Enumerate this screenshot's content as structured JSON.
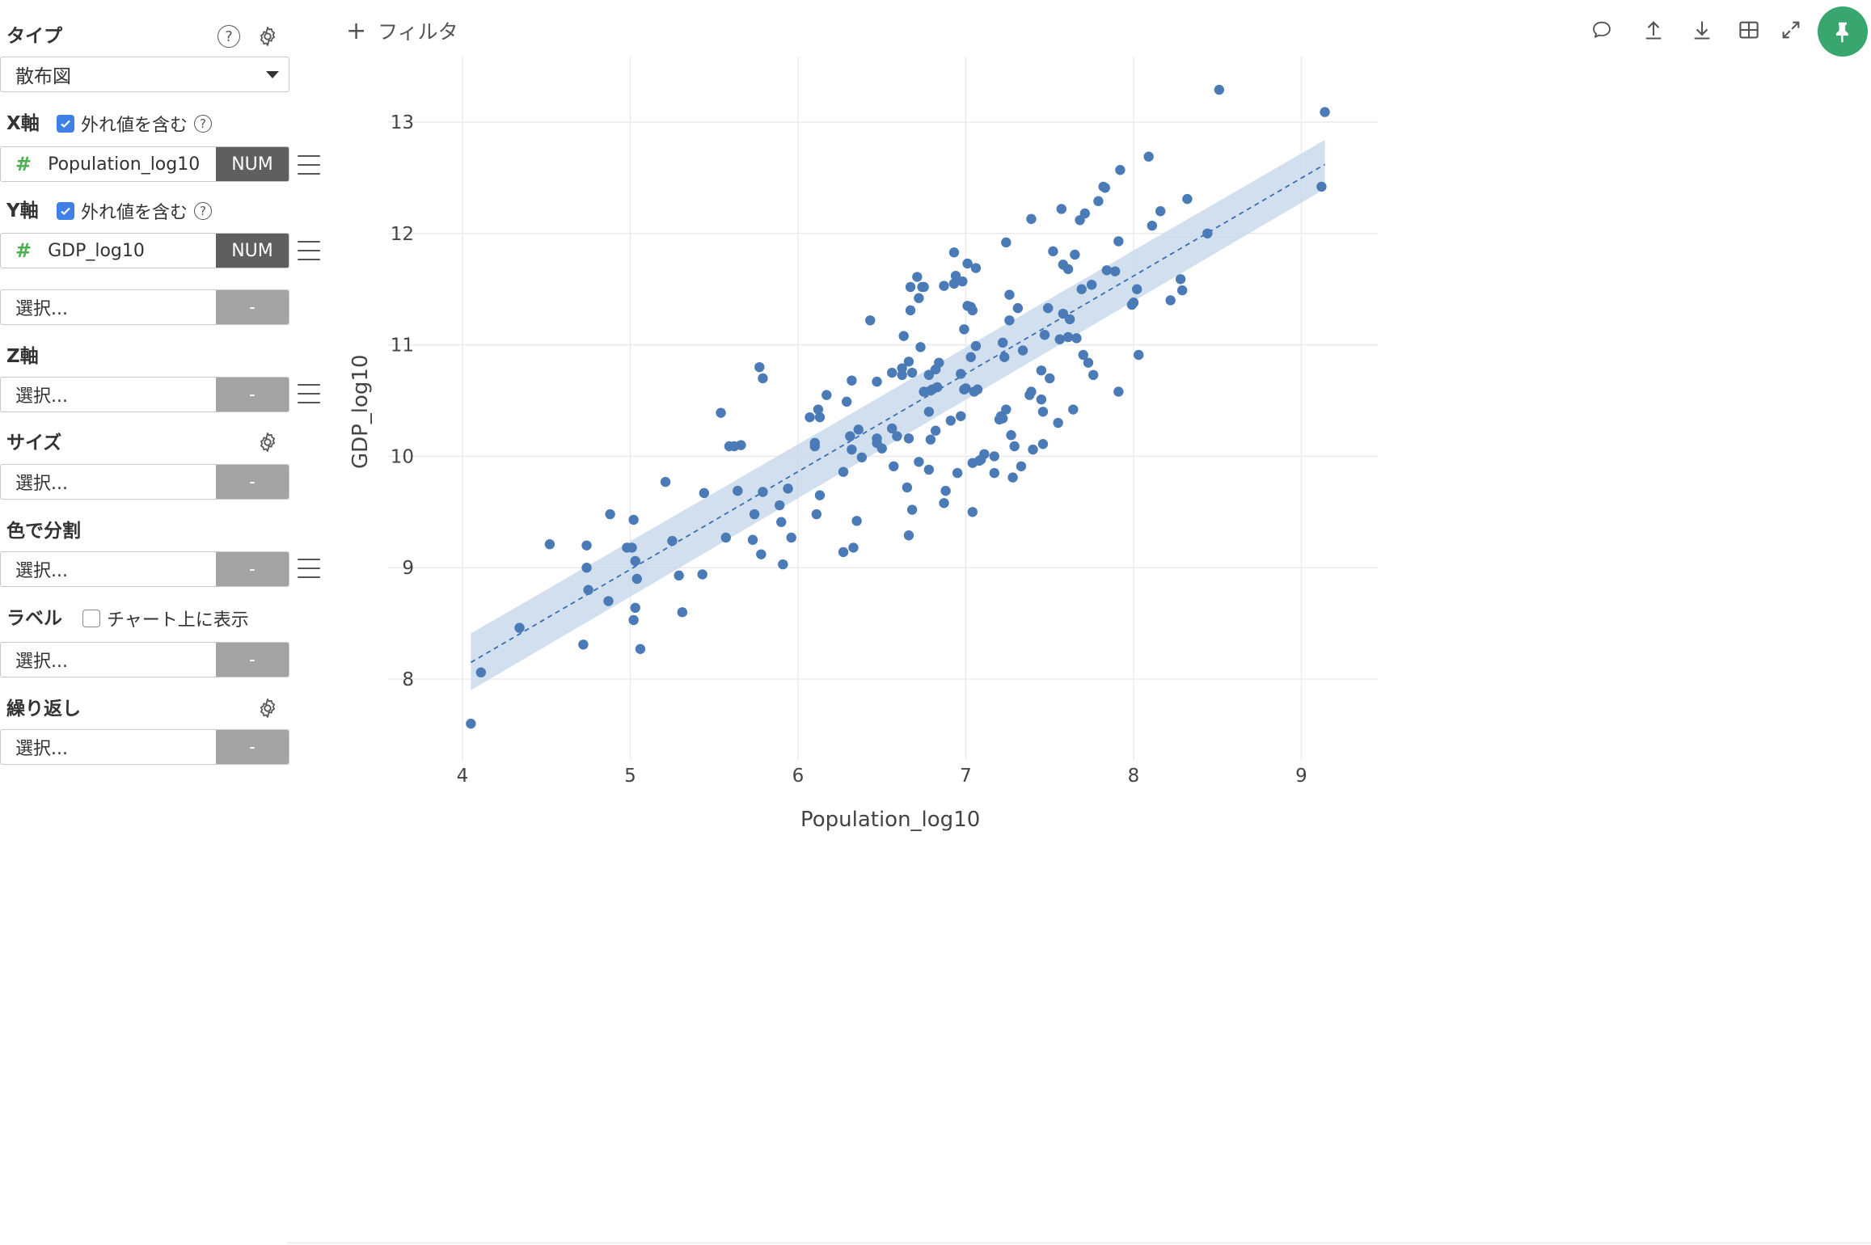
{
  "panel": {
    "type_label": "タイプ",
    "type_value": "散布図",
    "x_axis": {
      "label": "X軸",
      "include_outliers": "外れ値を含む",
      "column": "Population_log10",
      "tag": "NUM"
    },
    "y_axis": {
      "label": "Y軸",
      "include_outliers": "外れ値を含む",
      "column": "GDP_log10",
      "tag": "NUM",
      "extra_placeholder": "選択...",
      "extra_tag": "-"
    },
    "z_axis": {
      "label": "Z軸",
      "placeholder": "選択...",
      "tag": "-"
    },
    "size": {
      "label": "サイズ",
      "placeholder": "選択...",
      "tag": "-"
    },
    "color_split": {
      "label": "色で分割",
      "placeholder": "選択...",
      "tag": "-"
    },
    "label": {
      "label": "ラベル",
      "show_on_chart": "チャート上に表示",
      "placeholder": "選択...",
      "tag": "-"
    },
    "repeat": {
      "label": "繰り返し",
      "placeholder": "選択...",
      "tag": "-"
    }
  },
  "toolbar": {
    "filter_label": "フィルタ",
    "icons": [
      "comment-icon",
      "upload-icon",
      "download-icon",
      "table-icon",
      "expand-icon",
      "pin-icon"
    ]
  },
  "colors": {
    "point": "#4a7bb7",
    "band": "#c9d9ec",
    "trend": "#3a6fb0",
    "pin": "#3aa66f",
    "checkbox": "#3f80e6",
    "tag_dark": "#5f5f5f",
    "tag_light": "#a3a3a3"
  },
  "chart_data": {
    "type": "scatter",
    "xlabel": "Population_log10",
    "ylabel": "GDP_log10",
    "xlim": [
      3.96,
      9.45
    ],
    "ylim": [
      7.22,
      13.62
    ],
    "xticks": [
      4,
      5,
      6,
      7,
      8,
      9
    ],
    "yticks": [
      8,
      9,
      10,
      11,
      12,
      13
    ],
    "grid": true,
    "trend_line": {
      "x": [
        4.05,
        9.14
      ],
      "y": [
        8.15,
        12.62
      ],
      "style": "dashed"
    },
    "confidence_band": {
      "x": [
        4.05,
        9.14
      ],
      "upper": [
        8.41,
        12.84
      ],
      "lower": [
        7.9,
        12.4
      ]
    },
    "points": [
      [
        4.05,
        7.6
      ],
      [
        4.11,
        8.06
      ],
      [
        4.34,
        8.46
      ],
      [
        4.52,
        9.21
      ],
      [
        4.72,
        8.31
      ],
      [
        4.74,
        9.2
      ],
      [
        4.74,
        9.0
      ],
      [
        4.75,
        8.8
      ],
      [
        4.87,
        8.7
      ],
      [
        4.88,
        9.48
      ],
      [
        4.98,
        9.18
      ],
      [
        5.01,
        9.18
      ],
      [
        5.02,
        8.53
      ],
      [
        5.02,
        9.43
      ],
      [
        5.03,
        9.06
      ],
      [
        5.03,
        8.64
      ],
      [
        5.04,
        8.9
      ],
      [
        5.06,
        8.27
      ],
      [
        5.21,
        9.77
      ],
      [
        5.25,
        9.24
      ],
      [
        5.29,
        8.93
      ],
      [
        5.31,
        8.6
      ],
      [
        5.43,
        8.94
      ],
      [
        5.44,
        9.67
      ],
      [
        5.54,
        10.39
      ],
      [
        5.57,
        9.27
      ],
      [
        5.59,
        10.09
      ],
      [
        5.62,
        10.09
      ],
      [
        5.64,
        9.69
      ],
      [
        5.66,
        10.1
      ],
      [
        5.73,
        9.25
      ],
      [
        5.74,
        9.48
      ],
      [
        5.77,
        10.8
      ],
      [
        5.78,
        9.12
      ],
      [
        5.79,
        10.7
      ],
      [
        5.79,
        9.68
      ],
      [
        5.89,
        9.56
      ],
      [
        5.9,
        9.41
      ],
      [
        5.91,
        9.03
      ],
      [
        5.94,
        9.71
      ],
      [
        5.96,
        9.27
      ],
      [
        6.07,
        10.35
      ],
      [
        6.1,
        10.12
      ],
      [
        6.1,
        10.09
      ],
      [
        6.12,
        10.42
      ],
      [
        6.13,
        10.35
      ],
      [
        6.11,
        9.48
      ],
      [
        6.13,
        9.65
      ],
      [
        6.17,
        10.55
      ],
      [
        6.27,
        9.14
      ],
      [
        6.27,
        9.86
      ],
      [
        6.29,
        10.49
      ],
      [
        6.31,
        10.18
      ],
      [
        6.32,
        10.68
      ],
      [
        6.33,
        9.18
      ],
      [
        6.32,
        10.06
      ],
      [
        6.35,
        9.42
      ],
      [
        6.36,
        10.24
      ],
      [
        6.38,
        9.99
      ],
      [
        6.43,
        11.22
      ],
      [
        6.47,
        10.67
      ],
      [
        6.47,
        10.16
      ],
      [
        6.47,
        10.12
      ],
      [
        6.5,
        10.07
      ],
      [
        6.56,
        10.75
      ],
      [
        6.56,
        10.25
      ],
      [
        6.57,
        9.91
      ],
      [
        6.59,
        10.18
      ],
      [
        6.62,
        10.79
      ],
      [
        6.63,
        11.08
      ],
      [
        6.62,
        10.73
      ],
      [
        6.65,
        9.72
      ],
      [
        6.66,
        9.29
      ],
      [
        6.66,
        10.85
      ],
      [
        6.66,
        10.16
      ],
      [
        6.67,
        11.52
      ],
      [
        6.67,
        11.31
      ],
      [
        6.68,
        10.75
      ],
      [
        6.68,
        9.52
      ],
      [
        6.71,
        11.61
      ],
      [
        6.72,
        11.42
      ],
      [
        6.72,
        9.95
      ],
      [
        6.73,
        10.98
      ],
      [
        6.74,
        11.52
      ],
      [
        6.75,
        11.52
      ],
      [
        6.75,
        10.58
      ],
      [
        6.78,
        10.73
      ],
      [
        6.79,
        10.59
      ],
      [
        6.79,
        10.15
      ],
      [
        6.8,
        10.6
      ],
      [
        6.82,
        10.23
      ],
      [
        6.82,
        10.78
      ],
      [
        6.83,
        10.62
      ],
      [
        6.84,
        10.84
      ],
      [
        6.78,
        9.88
      ],
      [
        6.78,
        10.4
      ],
      [
        6.87,
        11.53
      ],
      [
        6.87,
        9.58
      ],
      [
        6.88,
        9.69
      ],
      [
        6.91,
        10.32
      ],
      [
        6.93,
        11.83
      ],
      [
        6.93,
        11.55
      ],
      [
        6.94,
        11.62
      ],
      [
        6.95,
        9.85
      ],
      [
        6.97,
        10.36
      ],
      [
        6.97,
        10.74
      ],
      [
        6.98,
        11.57
      ],
      [
        6.99,
        10.6
      ],
      [
        6.99,
        11.14
      ],
      [
        7.0,
        10.61
      ],
      [
        7.01,
        11.73
      ],
      [
        7.01,
        11.35
      ],
      [
        7.03,
        11.34
      ],
      [
        7.03,
        10.89
      ],
      [
        7.04,
        11.31
      ],
      [
        7.04,
        9.5
      ],
      [
        7.04,
        9.94
      ],
      [
        7.05,
        10.58
      ],
      [
        7.06,
        11.69
      ],
      [
        7.06,
        10.99
      ],
      [
        7.07,
        10.6
      ],
      [
        7.08,
        9.96
      ],
      [
        7.09,
        9.97
      ],
      [
        7.11,
        10.02
      ],
      [
        7.17,
        10.0
      ],
      [
        7.17,
        9.85
      ],
      [
        7.2,
        10.33
      ],
      [
        7.21,
        10.36
      ],
      [
        7.22,
        10.34
      ],
      [
        7.22,
        11.02
      ],
      [
        7.23,
        10.89
      ],
      [
        7.24,
        10.42
      ],
      [
        7.24,
        11.92
      ],
      [
        7.26,
        11.45
      ],
      [
        7.26,
        11.22
      ],
      [
        7.27,
        10.19
      ],
      [
        7.28,
        9.81
      ],
      [
        7.29,
        10.09
      ],
      [
        7.31,
        11.33
      ],
      [
        7.33,
        9.91
      ],
      [
        7.34,
        10.95
      ],
      [
        7.38,
        10.55
      ],
      [
        7.39,
        10.58
      ],
      [
        7.39,
        12.13
      ],
      [
        7.4,
        10.06
      ],
      [
        7.45,
        10.51
      ],
      [
        7.45,
        10.77
      ],
      [
        7.46,
        10.4
      ],
      [
        7.46,
        10.11
      ],
      [
        7.47,
        11.09
      ],
      [
        7.49,
        11.33
      ],
      [
        7.5,
        10.7
      ],
      [
        7.52,
        11.84
      ],
      [
        7.55,
        10.3
      ],
      [
        7.56,
        11.05
      ],
      [
        7.57,
        12.22
      ],
      [
        7.58,
        11.72
      ],
      [
        7.58,
        11.28
      ],
      [
        7.61,
        11.07
      ],
      [
        7.61,
        11.68
      ],
      [
        7.62,
        11.23
      ],
      [
        7.64,
        10.42
      ],
      [
        7.65,
        11.81
      ],
      [
        7.66,
        11.06
      ],
      [
        7.68,
        12.12
      ],
      [
        7.69,
        11.5
      ],
      [
        7.7,
        10.91
      ],
      [
        7.71,
        12.18
      ],
      [
        7.73,
        10.84
      ],
      [
        7.75,
        11.54
      ],
      [
        7.76,
        10.73
      ],
      [
        7.79,
        12.29
      ],
      [
        7.82,
        12.42
      ],
      [
        7.83,
        12.41
      ],
      [
        7.84,
        11.67
      ],
      [
        7.89,
        11.66
      ],
      [
        7.91,
        10.58
      ],
      [
        7.91,
        11.93
      ],
      [
        7.92,
        12.57
      ],
      [
        7.99,
        11.36
      ],
      [
        8.0,
        11.38
      ],
      [
        8.02,
        11.5
      ],
      [
        8.03,
        10.91
      ],
      [
        8.09,
        12.69
      ],
      [
        8.11,
        12.07
      ],
      [
        8.16,
        12.2
      ],
      [
        8.22,
        11.4
      ],
      [
        8.28,
        11.59
      ],
      [
        8.29,
        11.49
      ],
      [
        8.32,
        12.31
      ],
      [
        8.44,
        12.0
      ],
      [
        8.51,
        13.29
      ],
      [
        9.12,
        12.42
      ],
      [
        9.14,
        13.09
      ]
    ]
  }
}
